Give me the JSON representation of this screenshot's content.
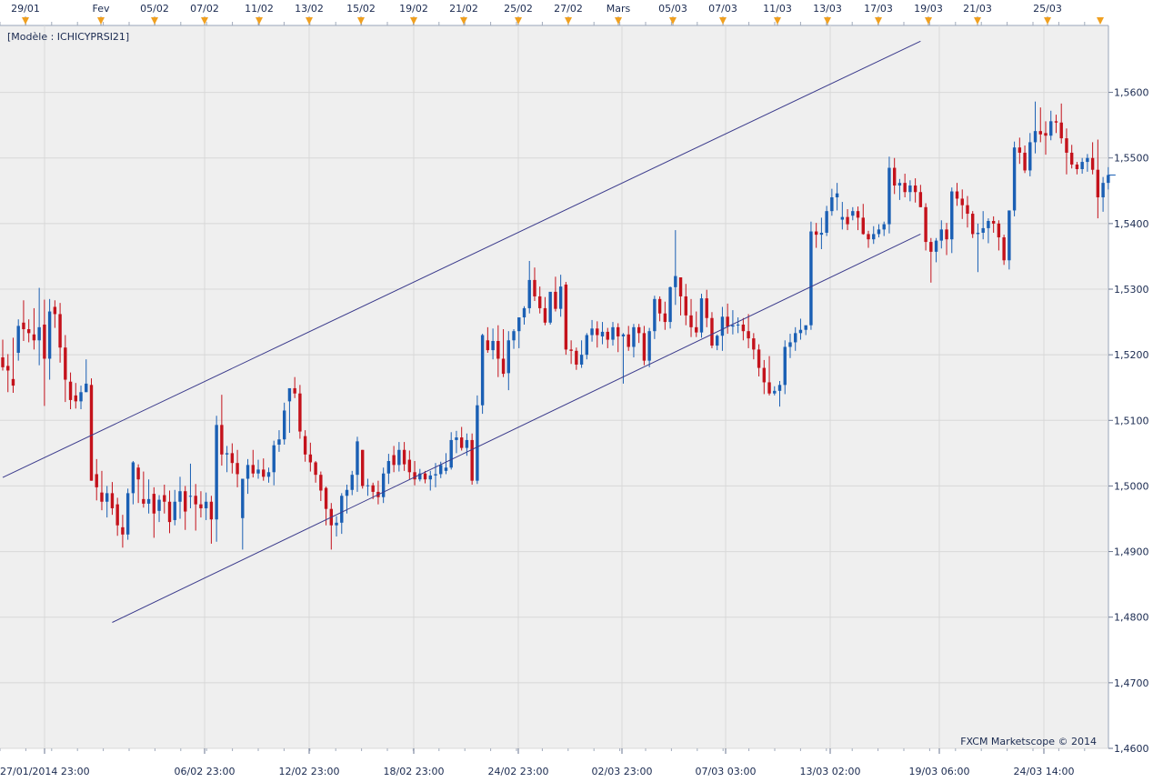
{
  "chart_data": {
    "type": "candlestick",
    "model_label": "[Modèle : ICHICYPRSI21]",
    "watermark": "FXCM Marketscope © 2014",
    "ylim": [
      1.46,
      1.5702
    ],
    "y_ticks": [
      "1,4600",
      "1,4700",
      "1,4800",
      "1,4900",
      "1,5000",
      "1,5100",
      "1,5200",
      "1,5300",
      "1,5400",
      "1,5500",
      "1,5600"
    ],
    "top_dates": [
      "29/01",
      "Fev",
      "05/02",
      "07/02",
      "11/02",
      "13/02",
      "15/02",
      "19/02",
      "21/02",
      "25/02",
      "27/02",
      "Mars",
      "05/03",
      "07/03",
      "11/03",
      "13/03",
      "17/03",
      "19/03",
      "21/03",
      "25/03"
    ],
    "bottom_dates": [
      "27/01/2014 23:00",
      "06/02 23:00",
      "12/02 23:00",
      "18/02 23:00",
      "24/02 23:00",
      "02/03 23:00",
      "07/03 03:00",
      "13/03 02:00",
      "19/03 06:00",
      "24/03 14:00"
    ],
    "colors": {
      "up": "#1a5fb4",
      "down": "#c4121b",
      "grid": "#d8d8d8",
      "channel": "#3b3b8c",
      "plot_bg": "#efefef",
      "text": "#1a2a50",
      "marker": "#f0a020"
    },
    "channel": [
      {
        "name": "upper",
        "x1": 0,
        "y1": 1.5013,
        "x2": 176,
        "y2": 1.5678
      },
      {
        "name": "lower",
        "x1": 21,
        "y1": 1.4792,
        "x2": 176,
        "y2": 1.5384
      }
    ],
    "last_price": 1.5474,
    "candles": [
      [
        1.5196,
        1.5223,
        1.5176,
        1.5181
      ],
      [
        1.5183,
        1.5201,
        1.5143,
        1.5176
      ],
      [
        1.5163,
        1.5226,
        1.5142,
        1.5153
      ],
      [
        1.5203,
        1.5254,
        1.5191,
        1.5244
      ],
      [
        1.5249,
        1.5283,
        1.5221,
        1.5239
      ],
      [
        1.5239,
        1.5254,
        1.5219,
        1.5233
      ],
      [
        1.5231,
        1.5271,
        1.5208,
        1.5222
      ],
      [
        1.5222,
        1.5302,
        1.5184,
        1.5242
      ],
      [
        1.5246,
        1.5284,
        1.5122,
        1.5194
      ],
      [
        1.5194,
        1.5285,
        1.5162,
        1.5266
      ],
      [
        1.5273,
        1.5283,
        1.5241,
        1.5262
      ],
      [
        1.5262,
        1.5279,
        1.5188,
        1.5211
      ],
      [
        1.5211,
        1.523,
        1.5128,
        1.5162
      ],
      [
        1.5159,
        1.5173,
        1.5117,
        1.5131
      ],
      [
        1.5138,
        1.5157,
        1.5118,
        1.5129
      ],
      [
        1.5129,
        1.5153,
        1.5117,
        1.5143
      ],
      [
        1.5143,
        1.5193,
        1.5143,
        1.5156
      ],
      [
        1.5154,
        1.5164,
        1.5008,
        1.5008
      ],
      [
        1.5018,
        1.5041,
        1.4978,
        1.4998
      ],
      [
        1.499,
        1.5023,
        1.4963,
        1.4976
      ],
      [
        1.4976,
        1.5,
        1.4952,
        1.4989
      ],
      [
        1.4989,
        1.5006,
        1.4956,
        1.4966
      ],
      [
        1.4972,
        1.4982,
        1.4924,
        1.494
      ],
      [
        1.4937,
        1.4956,
        1.4906,
        1.4926
      ],
      [
        1.4926,
        1.4996,
        1.4918,
        1.4989
      ],
      [
        1.4989,
        1.5038,
        1.4972,
        1.5036
      ],
      [
        1.5028,
        1.5033,
        1.4974,
        1.501
      ],
      [
        1.498,
        1.5022,
        1.4967,
        1.4973
      ],
      [
        1.4973,
        1.501,
        1.4958,
        1.498
      ],
      [
        1.4988,
        1.4998,
        1.4921,
        1.4958
      ],
      [
        1.4962,
        1.4986,
        1.4945,
        1.4979
      ],
      [
        1.4986,
        1.5002,
        1.4958,
        1.4976
      ],
      [
        1.4976,
        1.4993,
        1.4928,
        1.4945
      ],
      [
        1.4948,
        1.4994,
        1.494,
        1.4976
      ],
      [
        1.4976,
        1.5014,
        1.495,
        1.4992
      ],
      [
        1.4992,
        1.5,
        1.4933,
        1.4961
      ],
      [
        1.4985,
        1.5034,
        1.4966,
        1.4985
      ],
      [
        1.4985,
        1.5003,
        1.4932,
        1.4972
      ],
      [
        1.4972,
        1.4992,
        1.4952,
        1.4966
      ],
      [
        1.4966,
        1.499,
        1.4948,
        1.4976
      ],
      [
        1.4976,
        1.4985,
        1.4912,
        1.4949
      ],
      [
        1.4949,
        1.5107,
        1.4915,
        1.5093
      ],
      [
        1.5093,
        1.5139,
        1.5031,
        1.5048
      ],
      [
        1.5048,
        1.5061,
        1.5021,
        1.505
      ],
      [
        1.505,
        1.5065,
        1.5019,
        1.5035
      ],
      [
        1.5035,
        1.5055,
        1.4998,
        1.5018
      ],
      [
        1.4951,
        1.5,
        1.4903,
        1.5011
      ],
      [
        1.5011,
        1.5041,
        1.4988,
        1.5032
      ],
      [
        1.5032,
        1.5055,
        1.5013,
        1.5019
      ],
      [
        1.5019,
        1.504,
        1.5011,
        1.5025
      ],
      [
        1.5025,
        1.5042,
        1.5008,
        1.5014
      ],
      [
        1.5014,
        1.5028,
        1.5005,
        1.5021
      ],
      [
        1.5021,
        1.5069,
        1.5001,
        1.5062
      ],
      [
        1.5063,
        1.5085,
        1.5052,
        1.5071
      ],
      [
        1.5071,
        1.5127,
        1.5063,
        1.5115
      ],
      [
        1.5129,
        1.5139,
        1.5081,
        1.5149
      ],
      [
        1.5149,
        1.5166,
        1.5134,
        1.5141
      ],
      [
        1.5141,
        1.5154,
        1.5072,
        1.5083
      ],
      [
        1.5076,
        1.5085,
        1.5037,
        1.5048
      ],
      [
        1.5048,
        1.5066,
        1.5022,
        1.5036
      ],
      [
        1.5036,
        1.5038,
        1.5005,
        1.5017
      ],
      [
        1.5017,
        1.5022,
        1.4977,
        1.4993
      ],
      [
        1.4997,
        1.4999,
        1.494,
        1.4965
      ],
      [
        1.4965,
        1.4974,
        1.4903,
        1.494
      ],
      [
        1.494,
        1.4954,
        1.4923,
        1.4944
      ],
      [
        1.4944,
        1.4989,
        1.4927,
        1.4985
      ],
      [
        1.4985,
        1.5002,
        1.4958,
        1.4994
      ],
      [
        1.4994,
        1.5023,
        1.4986,
        1.5017
      ],
      [
        1.5017,
        1.5075,
        1.4991,
        1.5068
      ],
      [
        1.5055,
        1.5055,
        1.4996,
        1.5
      ],
      [
        1.5,
        1.5011,
        1.4985,
        1.5001
      ],
      [
        1.5001,
        1.5005,
        1.498,
        1.4991
      ],
      [
        1.4991,
        1.5008,
        1.4972,
        1.4983
      ],
      [
        1.4983,
        1.5028,
        1.4974,
        1.5019
      ],
      [
        1.5019,
        1.5049,
        1.5003,
        1.5038
      ],
      [
        1.5047,
        1.5061,
        1.5021,
        1.5032
      ],
      [
        1.5032,
        1.5067,
        1.5022,
        1.5055
      ],
      [
        1.5055,
        1.5067,
        1.5023,
        1.5033
      ],
      [
        1.504,
        1.5054,
        1.501,
        1.5021
      ],
      [
        1.5021,
        1.5038,
        1.5001,
        1.501
      ],
      [
        1.501,
        1.5026,
        1.5007,
        1.5019
      ],
      [
        1.5019,
        1.5023,
        1.5004,
        1.501
      ],
      [
        1.501,
        1.5023,
        1.4993,
        1.5016
      ],
      [
        1.5016,
        1.5035,
        1.4998,
        1.5018
      ],
      [
        1.5018,
        1.5037,
        1.5012,
        1.5032
      ],
      [
        1.5023,
        1.505,
        1.5018,
        1.5028
      ],
      [
        1.5028,
        1.5082,
        1.5025,
        1.507
      ],
      [
        1.507,
        1.5084,
        1.505,
        1.5074
      ],
      [
        1.5074,
        1.509,
        1.5054,
        1.5058
      ],
      [
        1.5058,
        1.508,
        1.5046,
        1.507
      ],
      [
        1.507,
        1.508,
        1.5002,
        1.5008
      ],
      [
        1.5008,
        1.5138,
        1.5003,
        1.5123
      ],
      [
        1.5123,
        1.5232,
        1.511,
        1.523
      ],
      [
        1.5222,
        1.5242,
        1.5203,
        1.5207
      ],
      [
        1.5207,
        1.524,
        1.5193,
        1.5221
      ],
      [
        1.5221,
        1.5245,
        1.5166,
        1.5194
      ],
      [
        1.5194,
        1.5239,
        1.5166,
        1.5171
      ],
      [
        1.5172,
        1.5236,
        1.5146,
        1.5222
      ],
      [
        1.5222,
        1.5239,
        1.5209,
        1.5236
      ],
      [
        1.5236,
        1.5255,
        1.521,
        1.5257
      ],
      [
        1.5257,
        1.5274,
        1.5246,
        1.5271
      ],
      [
        1.5271,
        1.5343,
        1.5263,
        1.5314
      ],
      [
        1.5314,
        1.5333,
        1.5282,
        1.5289
      ],
      [
        1.5289,
        1.5304,
        1.5263,
        1.5271
      ],
      [
        1.5271,
        1.5288,
        1.5245,
        1.5249
      ],
      [
        1.5249,
        1.5291,
        1.5246,
        1.5296
      ],
      [
        1.5296,
        1.5319,
        1.5266,
        1.527
      ],
      [
        1.527,
        1.5322,
        1.5258,
        1.5304
      ],
      [
        1.5307,
        1.5311,
        1.52,
        1.5208
      ],
      [
        1.5208,
        1.5222,
        1.5186,
        1.5206
      ],
      [
        1.5206,
        1.5211,
        1.5177,
        1.5185
      ],
      [
        1.5185,
        1.5222,
        1.518,
        1.52
      ],
      [
        1.52,
        1.5233,
        1.5193,
        1.523
      ],
      [
        1.523,
        1.5253,
        1.522,
        1.524
      ],
      [
        1.524,
        1.5251,
        1.5211,
        1.523
      ],
      [
        1.5228,
        1.525,
        1.5216,
        1.5235
      ],
      [
        1.5235,
        1.5241,
        1.521,
        1.5223
      ],
      [
        1.5223,
        1.525,
        1.5214,
        1.5242
      ],
      [
        1.5242,
        1.5248,
        1.5204,
        1.5228
      ],
      [
        1.5228,
        1.5233,
        1.5156,
        1.5231
      ],
      [
        1.5231,
        1.5244,
        1.5206,
        1.5212
      ],
      [
        1.5212,
        1.5247,
        1.5196,
        1.5242
      ],
      [
        1.5242,
        1.5247,
        1.5218,
        1.5233
      ],
      [
        1.5233,
        1.5244,
        1.5184,
        1.5191
      ],
      [
        1.5191,
        1.5241,
        1.5181,
        1.5236
      ],
      [
        1.5236,
        1.529,
        1.5224,
        1.5285
      ],
      [
        1.5285,
        1.5289,
        1.5251,
        1.5263
      ],
      [
        1.5263,
        1.5281,
        1.5238,
        1.525
      ],
      [
        1.525,
        1.5304,
        1.524,
        1.5303
      ],
      [
        1.5303,
        1.539,
        1.5276,
        1.532
      ],
      [
        1.5318,
        1.5318,
        1.526,
        1.5289
      ],
      [
        1.5289,
        1.5308,
        1.5245,
        1.526
      ],
      [
        1.526,
        1.5285,
        1.5227,
        1.5242
      ],
      [
        1.5242,
        1.5266,
        1.5227,
        1.5234
      ],
      [
        1.5234,
        1.5293,
        1.5226,
        1.5286
      ],
      [
        1.5286,
        1.5299,
        1.5242,
        1.5256
      ],
      [
        1.5256,
        1.5265,
        1.521,
        1.5214
      ],
      [
        1.5214,
        1.5231,
        1.5207,
        1.5229
      ],
      [
        1.5229,
        1.5273,
        1.5206,
        1.5258
      ],
      [
        1.5258,
        1.5278,
        1.5232,
        1.5243
      ],
      [
        1.5243,
        1.5268,
        1.5231,
        1.5245
      ],
      [
        1.5245,
        1.5257,
        1.5233,
        1.5246
      ],
      [
        1.5246,
        1.5256,
        1.5222,
        1.5236
      ],
      [
        1.5236,
        1.5262,
        1.521,
        1.5225
      ],
      [
        1.5225,
        1.5233,
        1.5193,
        1.5208
      ],
      [
        1.5208,
        1.5216,
        1.5167,
        1.518
      ],
      [
        1.518,
        1.5192,
        1.514,
        1.5158
      ],
      [
        1.5158,
        1.5198,
        1.5138,
        1.5141
      ],
      [
        1.5141,
        1.5152,
        1.5138,
        1.5145
      ],
      [
        1.5145,
        1.516,
        1.5121,
        1.5154
      ],
      [
        1.5154,
        1.5222,
        1.514,
        1.5212
      ],
      [
        1.5212,
        1.5232,
        1.5195,
        1.5219
      ],
      [
        1.5219,
        1.5242,
        1.5206,
        1.5233
      ],
      [
        1.5233,
        1.5255,
        1.5223,
        1.5238
      ],
      [
        1.5238,
        1.5243,
        1.523,
        1.5245
      ],
      [
        1.5245,
        1.5403,
        1.5238,
        1.5388
      ],
      [
        1.5388,
        1.5401,
        1.5363,
        1.5383
      ],
      [
        1.5383,
        1.5409,
        1.5361,
        1.5386
      ],
      [
        1.5386,
        1.5427,
        1.5381,
        1.5419
      ],
      [
        1.5419,
        1.5453,
        1.5412,
        1.544
      ],
      [
        1.544,
        1.5462,
        1.542,
        1.5446
      ],
      [
        1.5406,
        1.5433,
        1.5391,
        1.541
      ],
      [
        1.541,
        1.5422,
        1.539,
        1.5399
      ],
      [
        1.5412,
        1.5425,
        1.5405,
        1.5419
      ],
      [
        1.5419,
        1.5426,
        1.539,
        1.5409
      ],
      [
        1.5409,
        1.543,
        1.5383,
        1.5384
      ],
      [
        1.5384,
        1.5389,
        1.5363,
        1.5376
      ],
      [
        1.5376,
        1.5396,
        1.5369,
        1.5384
      ],
      [
        1.5384,
        1.5399,
        1.5379,
        1.5391
      ],
      [
        1.5391,
        1.5403,
        1.5381,
        1.5399
      ],
      [
        1.5399,
        1.5502,
        1.5385,
        1.5485
      ],
      [
        1.5485,
        1.55,
        1.5445,
        1.5458
      ],
      [
        1.5458,
        1.5468,
        1.5436,
        1.5462
      ],
      [
        1.5462,
        1.5476,
        1.544,
        1.5448
      ],
      [
        1.5448,
        1.5466,
        1.5434,
        1.5458
      ],
      [
        1.5458,
        1.5469,
        1.5432,
        1.5448
      ],
      [
        1.5448,
        1.5459,
        1.5425,
        1.5425
      ],
      [
        1.5425,
        1.5431,
        1.5359,
        1.5372
      ],
      [
        1.5372,
        1.5378,
        1.531,
        1.5357
      ],
      [
        1.5357,
        1.5378,
        1.5341,
        1.5374
      ],
      [
        1.5374,
        1.5405,
        1.5362,
        1.5391
      ],
      [
        1.5391,
        1.5401,
        1.5352,
        1.5376
      ],
      [
        1.5376,
        1.5455,
        1.5355,
        1.5449
      ],
      [
        1.5449,
        1.5462,
        1.5427,
        1.5438
      ],
      [
        1.5438,
        1.5452,
        1.5407,
        1.5428
      ],
      [
        1.5428,
        1.5442,
        1.5394,
        1.5415
      ],
      [
        1.5415,
        1.5419,
        1.5378,
        1.5384
      ],
      [
        1.5384,
        1.54,
        1.5326,
        1.5386
      ],
      [
        1.5386,
        1.5419,
        1.5376,
        1.5393
      ],
      [
        1.5393,
        1.5408,
        1.537,
        1.5404
      ],
      [
        1.5404,
        1.5411,
        1.5386,
        1.54
      ],
      [
        1.54,
        1.5405,
        1.5359,
        1.5379
      ],
      [
        1.5379,
        1.5383,
        1.5337,
        1.5344
      ],
      [
        1.5344,
        1.542,
        1.533,
        1.542
      ],
      [
        1.542,
        1.5525,
        1.5411,
        1.5516
      ],
      [
        1.5516,
        1.5531,
        1.5491,
        1.5508
      ],
      [
        1.5508,
        1.5519,
        1.5477,
        1.5481
      ],
      [
        1.5481,
        1.5538,
        1.5472,
        1.5524
      ],
      [
        1.5524,
        1.5586,
        1.5507,
        1.5541
      ],
      [
        1.5541,
        1.5577,
        1.5524,
        1.5536
      ],
      [
        1.5538,
        1.5556,
        1.5505,
        1.5534
      ],
      [
        1.5534,
        1.5572,
        1.5527,
        1.5556
      ],
      [
        1.5556,
        1.5566,
        1.5538,
        1.5554
      ],
      [
        1.5554,
        1.5583,
        1.5522,
        1.553
      ],
      [
        1.553,
        1.5545,
        1.5475,
        1.5508
      ],
      [
        1.5508,
        1.552,
        1.5484,
        1.549
      ],
      [
        1.549,
        1.5494,
        1.5475,
        1.5483
      ],
      [
        1.5483,
        1.55,
        1.5476,
        1.5494
      ],
      [
        1.5494,
        1.5506,
        1.5479,
        1.55
      ],
      [
        1.55,
        1.5524,
        1.5475,
        1.5482
      ],
      [
        1.5482,
        1.5528,
        1.5408,
        1.544
      ],
      [
        1.544,
        1.5471,
        1.5418,
        1.5462
      ],
      [
        1.5462,
        1.5486,
        1.5452,
        1.5474
      ]
    ]
  }
}
